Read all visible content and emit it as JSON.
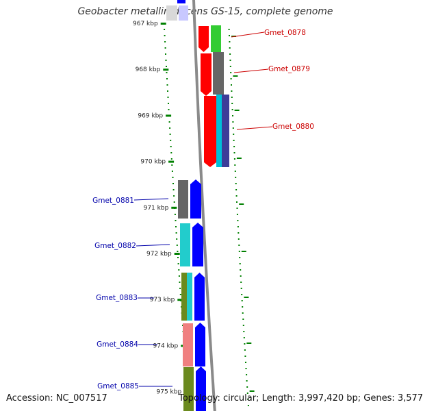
{
  "title": "Geobacter metallireducens GS-15, complete genome",
  "accession": "Accession: NC_007517",
  "topology": "Topology: circular; Length: 3,997,420 bp; Genes: 3,577",
  "ticks": [
    {
      "label": "967 kbp",
      "kbp": 967
    },
    {
      "label": "968 kbp",
      "kbp": 968
    },
    {
      "label": "969 kbp",
      "kbp": 969
    },
    {
      "label": "970 kbp",
      "kbp": 970
    },
    {
      "label": "971 kbp",
      "kbp": 971
    },
    {
      "label": "972 kbp",
      "kbp": 972
    },
    {
      "label": "973 kbp",
      "kbp": 973
    },
    {
      "label": "974 kbp",
      "kbp": 974
    },
    {
      "label": "975 kbp",
      "kbp": 975
    }
  ],
  "genes": [
    {
      "name": "Gmet_0878",
      "strand": "reverse",
      "color": "#cc0000"
    },
    {
      "name": "Gmet_0879",
      "strand": "reverse",
      "color": "#cc0000"
    },
    {
      "name": "Gmet_0880",
      "strand": "reverse",
      "color": "#cc0000"
    },
    {
      "name": "Gmet_0881",
      "strand": "forward",
      "color": "#0000aa"
    },
    {
      "name": "Gmet_0882",
      "strand": "forward",
      "color": "#0000aa"
    },
    {
      "name": "Gmet_0883",
      "strand": "forward",
      "color": "#0000aa"
    },
    {
      "name": "Gmet_0884",
      "strand": "forward",
      "color": "#0000aa"
    },
    {
      "name": "Gmet_0885",
      "strand": "forward",
      "color": "#0000aa"
    }
  ],
  "colors": {
    "cds_reverse": "#ff0000",
    "cds_forward": "#0000ff",
    "backbone": "#8a8a8a",
    "gc_skew_marks": "#008000",
    "label_reverse": "#cc0000",
    "label_forward": "#0000aa",
    "cog_green": "#33cc33",
    "cog_grey": "#666666",
    "cog_cyan": "#00bfd8",
    "cog_slate": "#3d3d99",
    "cog_teal": "#22cccc",
    "cog_olive": "#6b8a1e",
    "cog_pink": "#f08080",
    "cog_lightblue": "#c8c8ff"
  }
}
